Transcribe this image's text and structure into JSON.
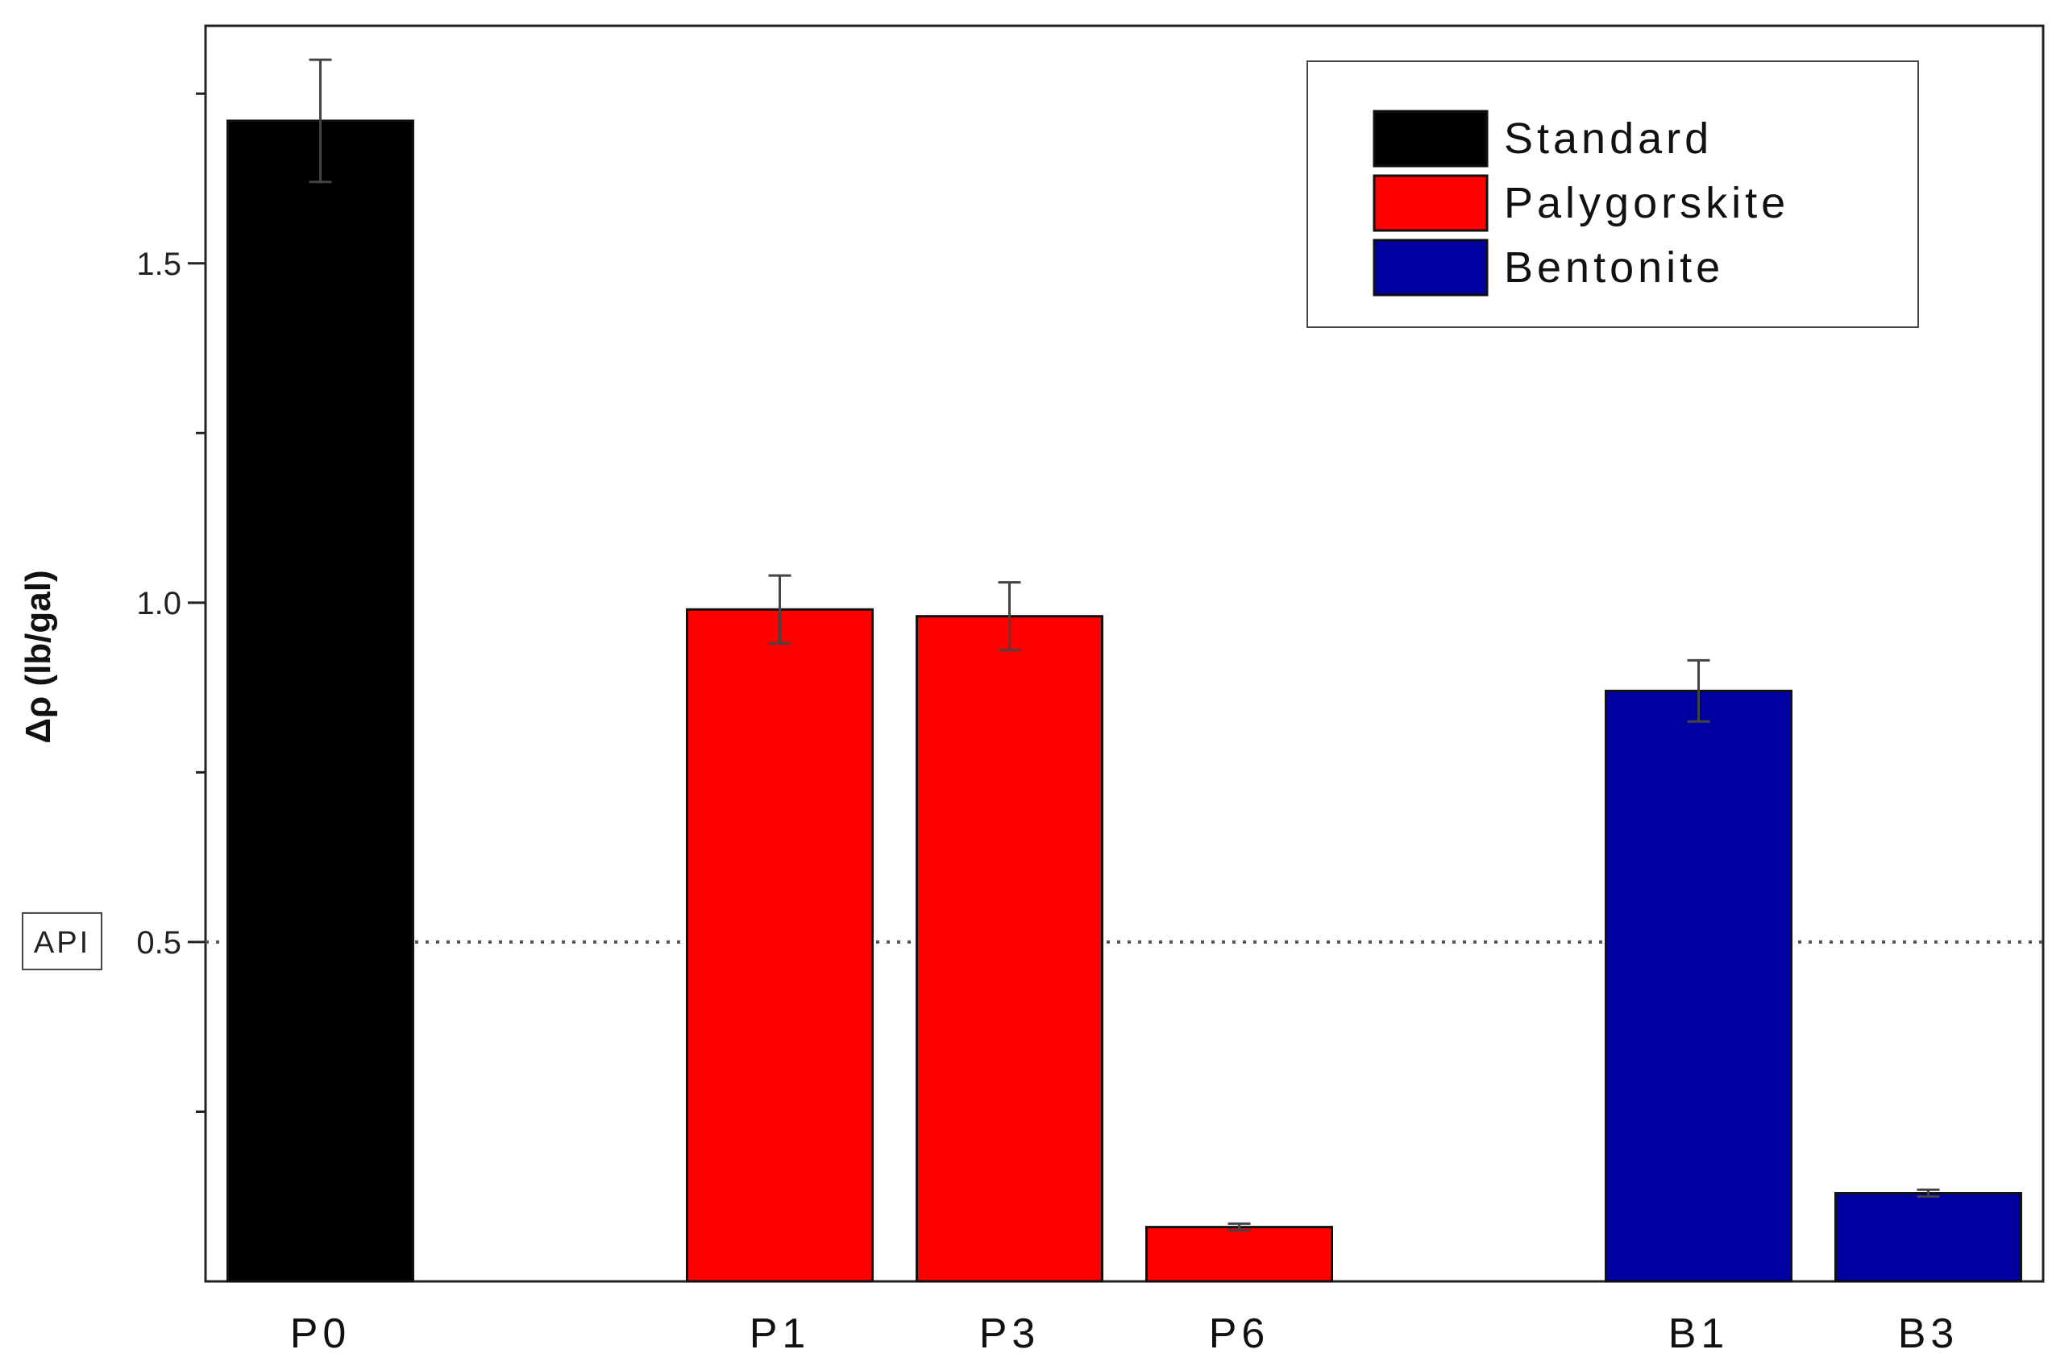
{
  "chart_data": {
    "type": "bar",
    "title": "",
    "xlabel": "",
    "ylabel": "Δρ (lb/gal)",
    "ylim": [
      0.0,
      1.85
    ],
    "y_major_ticks": [
      0.5,
      1.0,
      1.5
    ],
    "y_minor_ticks": [
      0.25,
      0.75,
      1.25,
      1.75
    ],
    "grid": false,
    "legend_position": "top-right",
    "categories": [
      "P0",
      "P1",
      "P3",
      "P6",
      "B1",
      "B3"
    ],
    "x_positions": [
      1,
      3,
      4,
      5,
      7,
      8
    ],
    "x_range": [
      0.5,
      8.5
    ],
    "values": [
      1.71,
      0.99,
      0.98,
      0.08,
      0.87,
      0.13
    ],
    "errors": [
      0.09,
      0.05,
      0.05,
      0.005,
      0.045,
      0.005
    ],
    "series": [
      {
        "name": "Standard",
        "color": "#000000",
        "categories": [
          "P0"
        ]
      },
      {
        "name": "Palygorskite",
        "color": "#ff0000",
        "categories": [
          "P1",
          "P3",
          "P6"
        ]
      },
      {
        "name": "Bentonite",
        "color": "#0000a0",
        "categories": [
          "B1",
          "B3"
        ]
      }
    ],
    "reference_line": {
      "label": "API",
      "value": 0.5,
      "style": "dotted"
    }
  }
}
